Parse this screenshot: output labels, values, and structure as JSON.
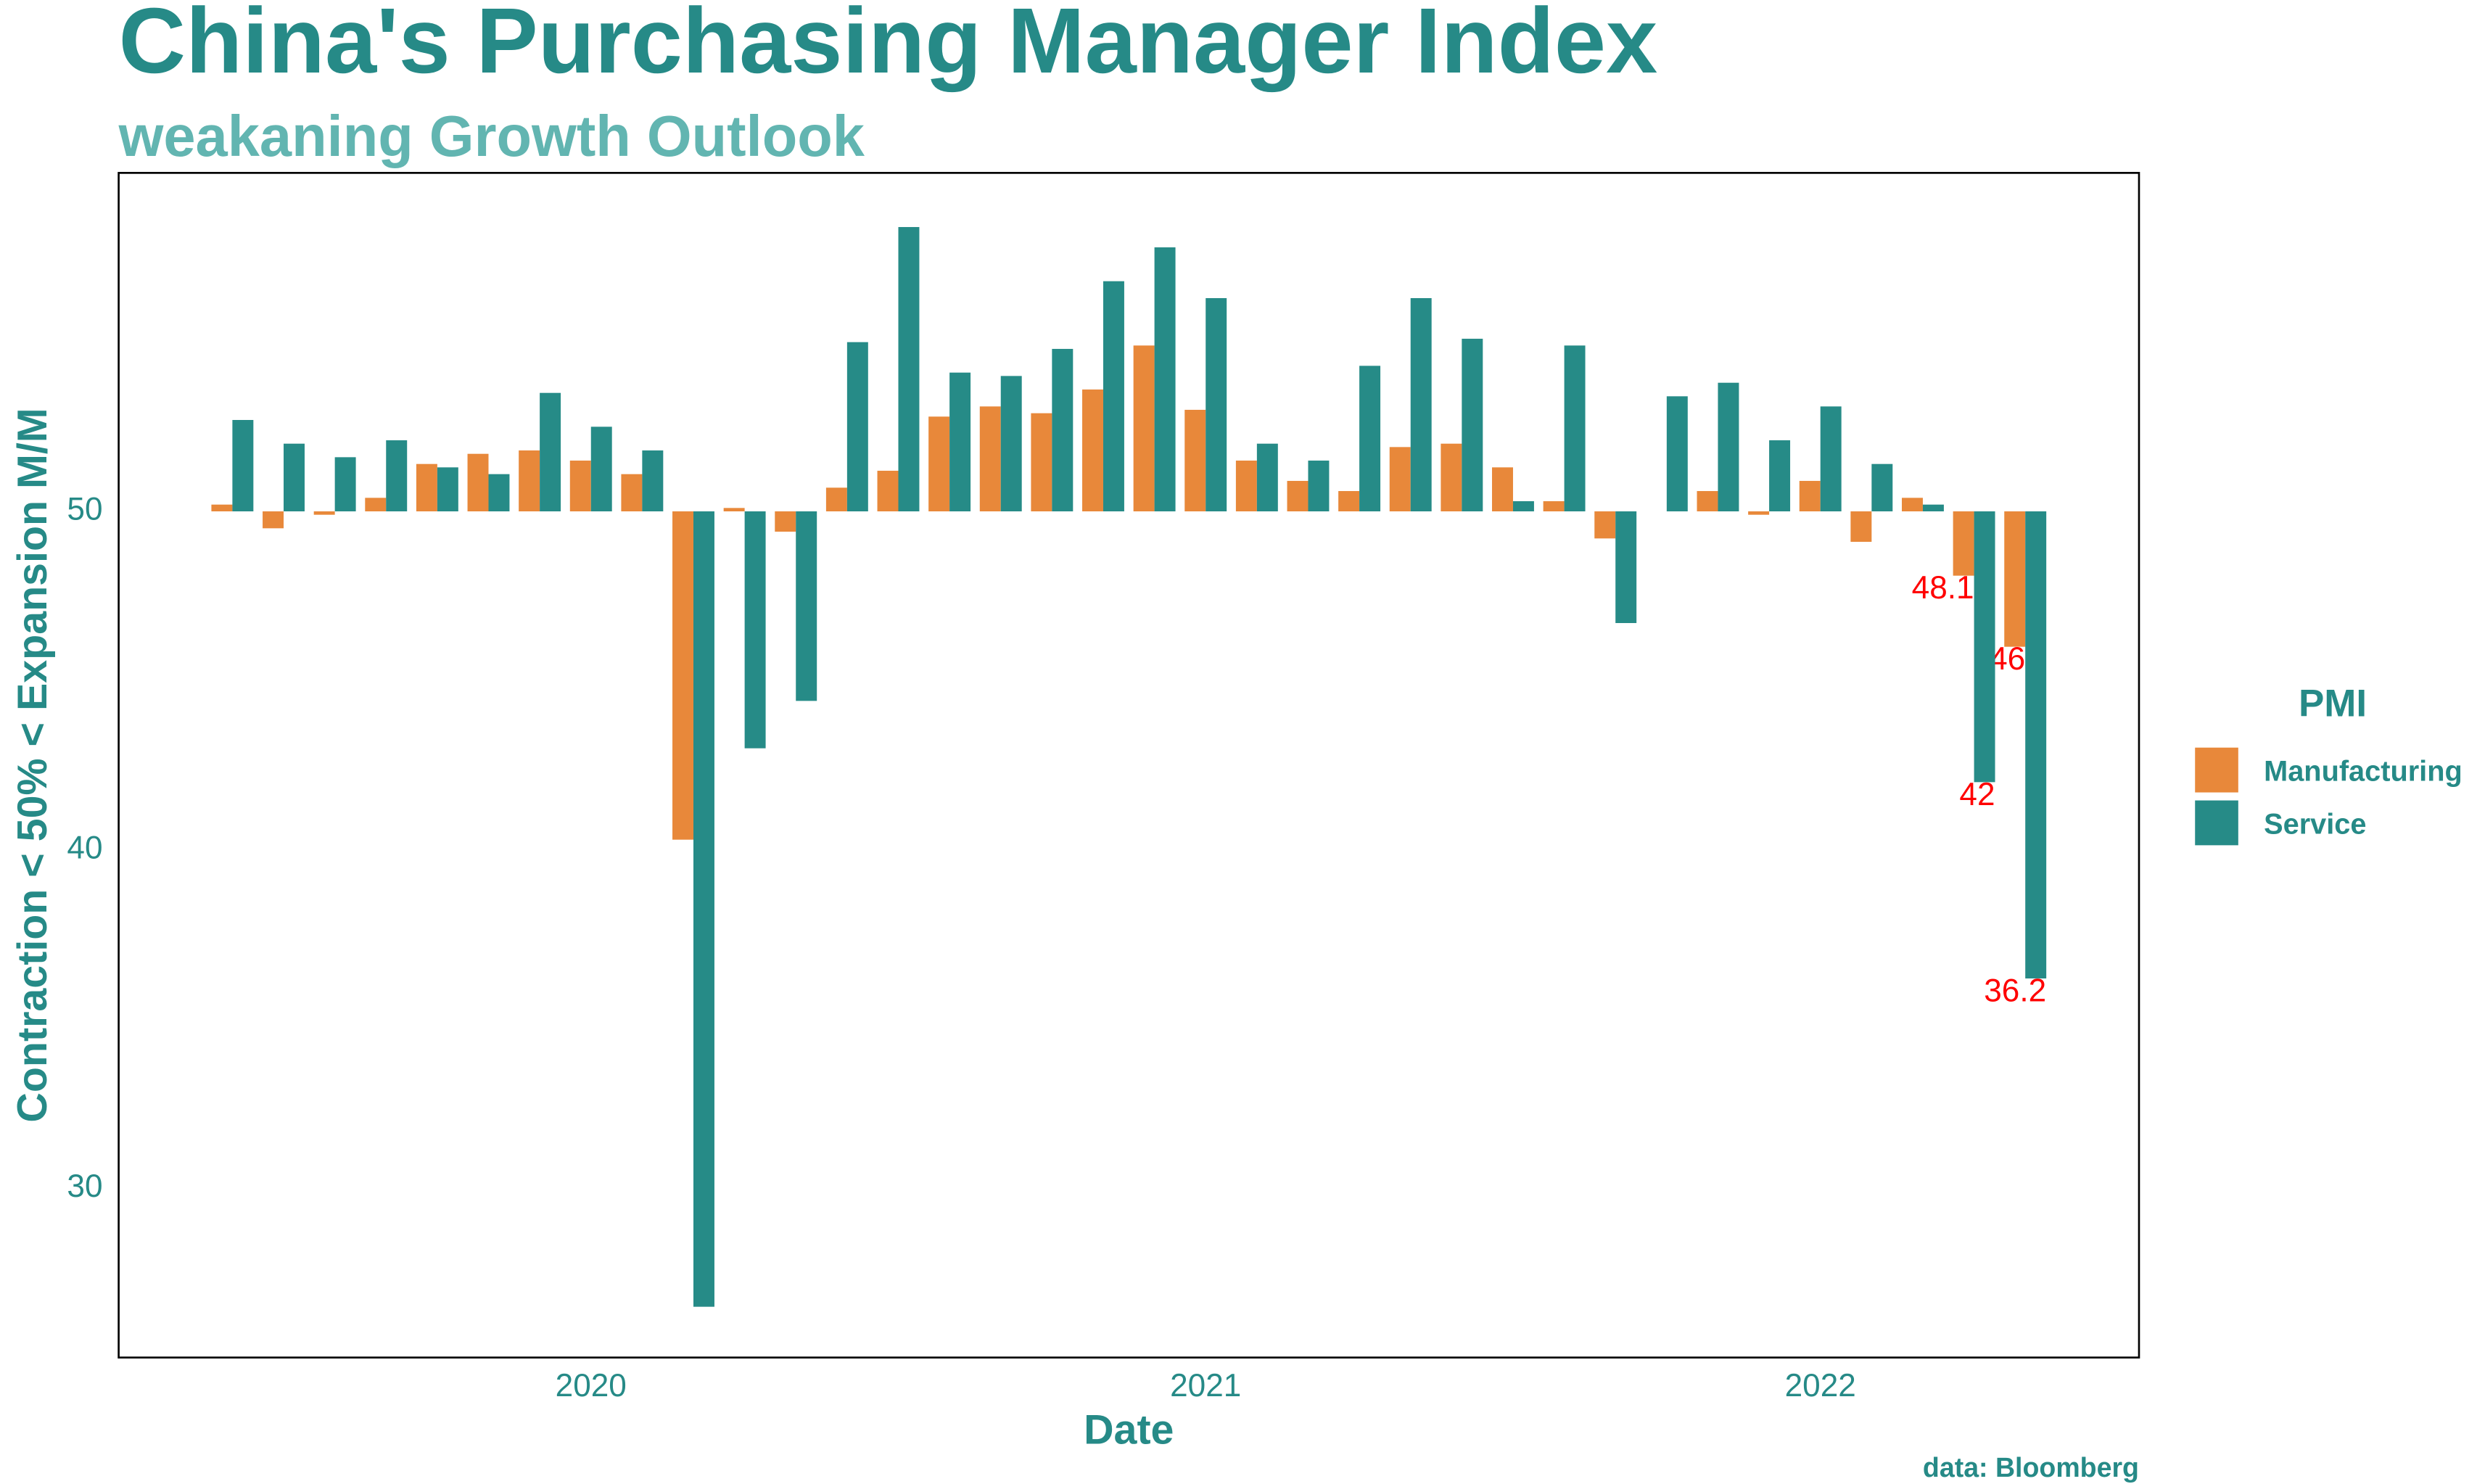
{
  "chart_data": {
    "type": "bar",
    "title": "China's Purchasing Manager Index",
    "subtitle": "weakaning Growth Outlook",
    "x_label": "Date",
    "y_label": "Contraction < 50% < Expansion M/M",
    "caption": "data: Bloomberg",
    "legend_title": "PMI",
    "legend_position": "right",
    "grid": false,
    "baseline": 50,
    "categories": [
      null,
      null,
      null,
      null,
      null,
      null,
      null,
      null,
      null,
      null,
      null,
      null,
      null,
      null,
      null,
      null,
      null,
      null,
      null,
      null,
      null,
      null,
      null,
      null,
      null,
      null,
      null,
      null,
      null,
      null,
      null,
      null,
      null,
      null,
      null,
      null
    ],
    "xlim": [
      -2.22,
      37.22
    ],
    "xticks": [
      {
        "value": 7,
        "label": "2020"
      },
      {
        "value": 19,
        "label": "2021"
      },
      {
        "value": 31,
        "label": "2022"
      }
    ],
    "ylim": [
      25,
      60
    ],
    "yticks": [
      30,
      40,
      50
    ],
    "series": [
      {
        "name": "Manufacturing",
        "color": "#e8883a",
        "values": [
          50.2,
          49.5,
          49.9,
          50.4,
          51.4,
          51.7,
          51.8,
          51.5,
          51.1,
          40.3,
          50.1,
          49.4,
          50.7,
          51.2,
          52.8,
          53.1,
          52.9,
          53.6,
          54.9,
          53.0,
          51.5,
          50.9,
          50.6,
          51.9,
          52.0,
          51.3,
          50.3,
          49.2,
          50.0,
          50.6,
          49.9,
          50.9,
          49.1,
          50.4,
          48.1,
          46.0
        ],
        "value_labels": [
          null,
          null,
          null,
          null,
          null,
          null,
          null,
          null,
          null,
          null,
          null,
          null,
          null,
          null,
          null,
          null,
          null,
          null,
          null,
          null,
          null,
          null,
          null,
          null,
          null,
          null,
          null,
          null,
          null,
          null,
          null,
          null,
          null,
          null,
          "48.1",
          "46"
        ]
      },
      {
        "name": "Service",
        "color": "#268b87",
        "values": [
          52.7,
          52.0,
          51.6,
          52.1,
          51.3,
          51.1,
          53.5,
          52.5,
          51.8,
          26.5,
          43.0,
          44.4,
          55.0,
          58.4,
          54.1,
          54.0,
          54.8,
          56.8,
          57.8,
          56.3,
          52.0,
          51.5,
          54.3,
          56.3,
          55.1,
          50.3,
          54.9,
          46.7,
          53.4,
          53.8,
          52.1,
          53.1,
          51.4,
          50.2,
          42.0,
          36.2
        ],
        "value_labels": [
          null,
          null,
          null,
          null,
          null,
          null,
          null,
          null,
          null,
          null,
          null,
          null,
          null,
          null,
          null,
          null,
          null,
          null,
          null,
          null,
          null,
          null,
          null,
          null,
          null,
          null,
          null,
          null,
          null,
          null,
          null,
          null,
          null,
          null,
          "42",
          "36.2"
        ]
      }
    ]
  }
}
